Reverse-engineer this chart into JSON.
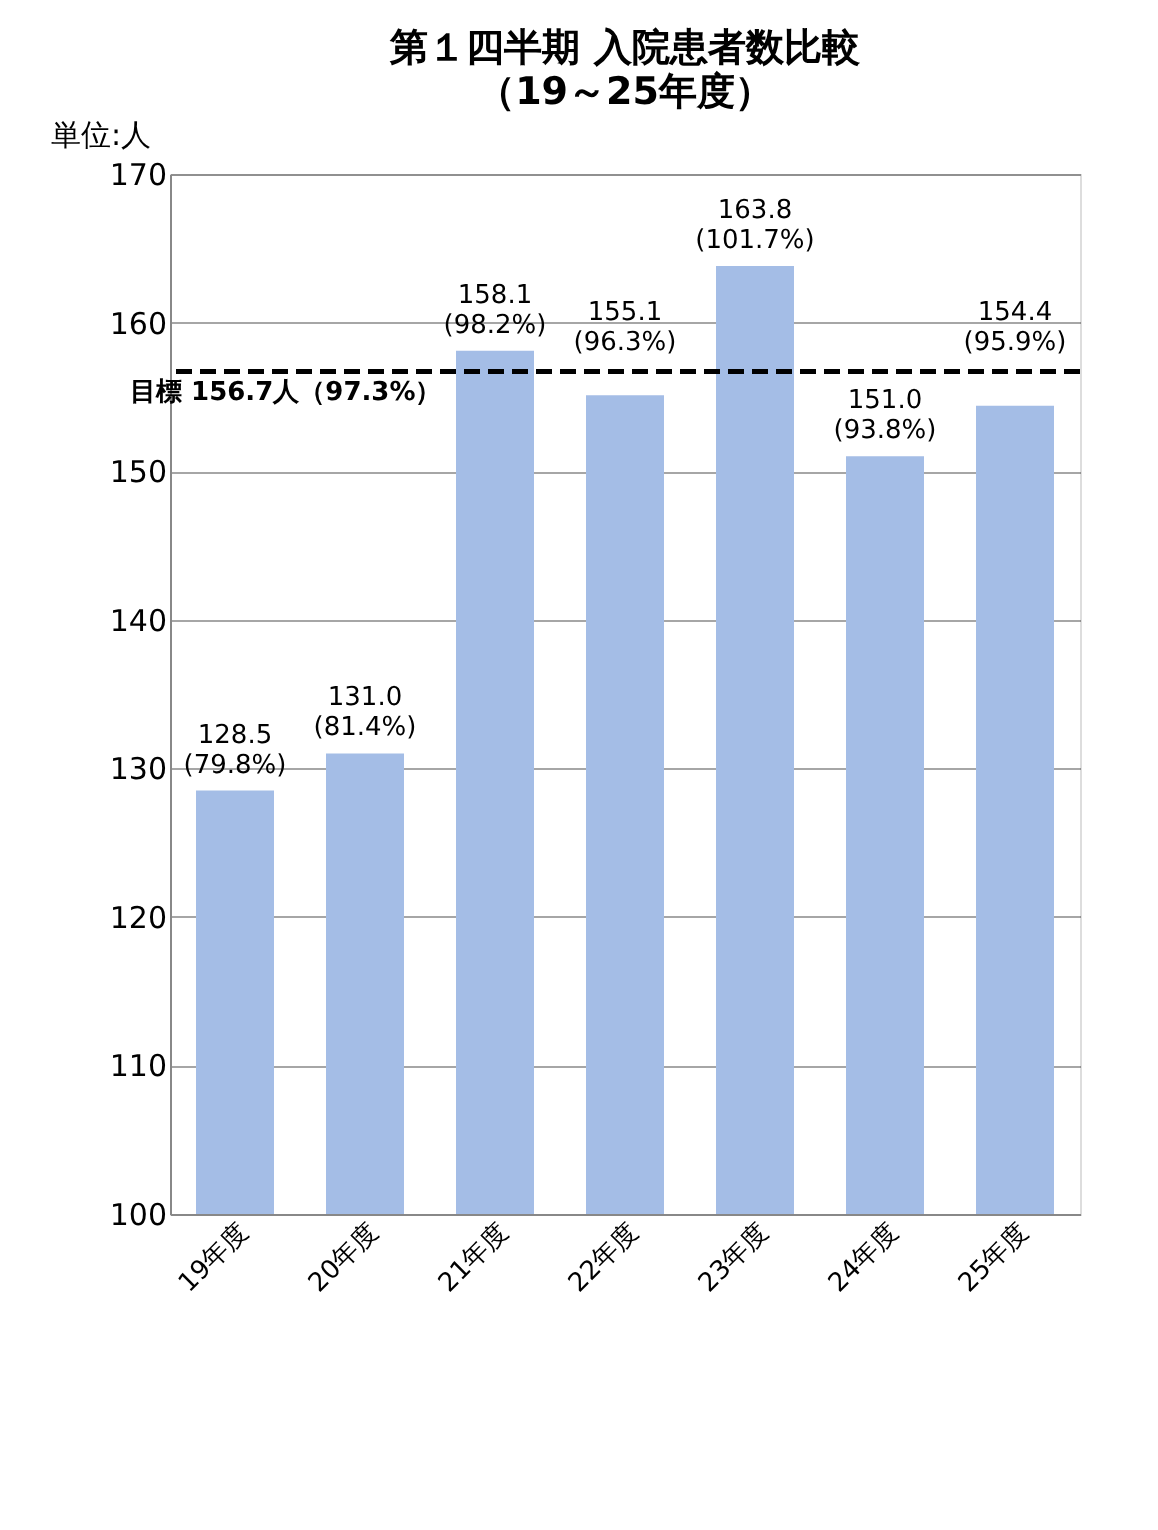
{
  "chart_data": {
    "type": "bar",
    "title": "第１四半期 入院患者数比較",
    "subtitle": "（19～25年度）",
    "ylabel": "単位:人",
    "categories": [
      "19年度",
      "20年度",
      "21年度",
      "22年度",
      "23年度",
      "24年度",
      "25年度"
    ],
    "values": [
      128.5,
      131.0,
      158.1,
      155.1,
      163.8,
      151.0,
      154.4
    ],
    "value_labels": [
      "128.5\n(79.8%)",
      "131.0\n(81.4%)",
      "158.1\n(98.2%)",
      "155.1\n(96.3%)",
      "163.8\n(101.7%)",
      "151.0\n(93.8%)",
      "154.4\n(95.9%)"
    ],
    "color": "#a4bde6",
    "ylim": [
      100,
      170
    ],
    "yticks": [
      100,
      110,
      120,
      130,
      140,
      150,
      160,
      170
    ],
    "grid": "y",
    "ref_lines": [
      {
        "axis": "y",
        "value": 156.7,
        "label": "目標 156.7人（97.3%）",
        "color": "#000000",
        "line_style": "dashed"
      }
    ]
  }
}
